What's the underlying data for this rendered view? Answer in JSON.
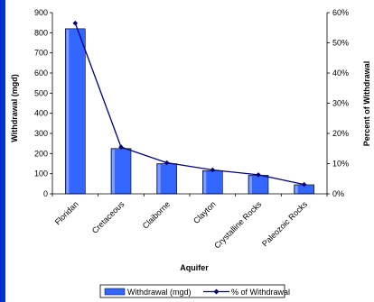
{
  "chart_data": {
    "type": "bar",
    "categories": [
      "Floridan",
      "Cretaceous",
      "Claiborne",
      "Clayton",
      "Crystalline Rocks",
      "Paleozoic Rocks"
    ],
    "series": [
      {
        "name": "Withdrawal (mgd)",
        "type": "bar",
        "axis": "left",
        "values": [
          820,
          225,
          150,
          115,
          92,
          45
        ],
        "color": "#3366ff"
      },
      {
        "name": "% of Withdrawal",
        "type": "line",
        "axis": "right",
        "values": [
          56.5,
          15.5,
          10.3,
          7.9,
          6.3,
          3.1
        ],
        "color": "#000080"
      }
    ],
    "xlabel": "Aquifer",
    "ylabel": "Withdrawal (mgd)",
    "y2label": "Percent of Withdrawal",
    "ylim": [
      0,
      900
    ],
    "y2lim": [
      0,
      60
    ],
    "yticks": [
      "0",
      "100",
      "200",
      "300",
      "400",
      "500",
      "600",
      "700",
      "800",
      "900"
    ],
    "y2ticks": [
      "0%",
      "10%",
      "20%",
      "30%",
      "40%",
      "50%",
      "60%"
    ],
    "legend_position": "bottom",
    "grid": false,
    "accent_strip_color": "#0033cc"
  }
}
